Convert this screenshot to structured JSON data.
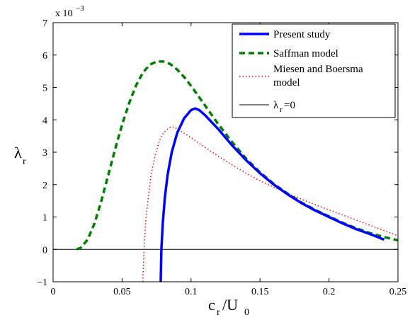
{
  "chart_data": {
    "type": "line",
    "xlabel": "c_r/U_0",
    "ylabel": "λ_r",
    "y_multiplier_label": "x 10^-3",
    "xlim": [
      0,
      0.25
    ],
    "ylim": [
      -1,
      7
    ],
    "x_ticks": [
      "0",
      "0.05",
      "0.1",
      "0.15",
      "0.2",
      "0.25"
    ],
    "y_ticks": [
      "−1",
      "0",
      "1",
      "2",
      "3",
      "4",
      "5",
      "6",
      "7"
    ],
    "grid": false,
    "legend_position": "top-right",
    "series": [
      {
        "name": "Present study",
        "color": "#0000ff",
        "style": "solid",
        "points": [
          [
            0.078,
            -1.0
          ],
          [
            0.0785,
            0.0
          ],
          [
            0.0795,
            0.8
          ],
          [
            0.081,
            1.6
          ],
          [
            0.083,
            2.3
          ],
          [
            0.086,
            3.0
          ],
          [
            0.09,
            3.6
          ],
          [
            0.095,
            4.05
          ],
          [
            0.1,
            4.3
          ],
          [
            0.103,
            4.35
          ],
          [
            0.106,
            4.3
          ],
          [
            0.11,
            4.15
          ],
          [
            0.12,
            3.7
          ],
          [
            0.13,
            3.2
          ],
          [
            0.14,
            2.75
          ],
          [
            0.15,
            2.35
          ],
          [
            0.16,
            2.0
          ],
          [
            0.17,
            1.7
          ],
          [
            0.18,
            1.43
          ],
          [
            0.19,
            1.2
          ],
          [
            0.2,
            1.0
          ],
          [
            0.21,
            0.8
          ],
          [
            0.22,
            0.62
          ],
          [
            0.23,
            0.47
          ],
          [
            0.24,
            0.3
          ]
        ]
      },
      {
        "name": "Saffman model",
        "color": "#008000",
        "style": "dashed",
        "points": [
          [
            0.017,
            0.0
          ],
          [
            0.02,
            0.05
          ],
          [
            0.025,
            0.3
          ],
          [
            0.03,
            0.8
          ],
          [
            0.035,
            1.5
          ],
          [
            0.04,
            2.3
          ],
          [
            0.045,
            3.1
          ],
          [
            0.05,
            3.85
          ],
          [
            0.055,
            4.5
          ],
          [
            0.06,
            5.05
          ],
          [
            0.065,
            5.45
          ],
          [
            0.07,
            5.7
          ],
          [
            0.075,
            5.8
          ],
          [
            0.08,
            5.8
          ],
          [
            0.085,
            5.72
          ],
          [
            0.09,
            5.55
          ],
          [
            0.095,
            5.32
          ],
          [
            0.1,
            5.05
          ],
          [
            0.11,
            4.45
          ],
          [
            0.12,
            3.85
          ],
          [
            0.13,
            3.3
          ],
          [
            0.14,
            2.8
          ],
          [
            0.15,
            2.38
          ],
          [
            0.16,
            2.02
          ],
          [
            0.17,
            1.72
          ],
          [
            0.18,
            1.45
          ],
          [
            0.19,
            1.22
          ],
          [
            0.2,
            1.02
          ],
          [
            0.21,
            0.82
          ],
          [
            0.22,
            0.65
          ],
          [
            0.23,
            0.5
          ],
          [
            0.24,
            0.38
          ],
          [
            0.25,
            0.28
          ]
        ]
      },
      {
        "name": "Miesen and Boersma model",
        "color": "#ff0000",
        "style": "dotted",
        "points": [
          [
            0.065,
            -1.0
          ],
          [
            0.066,
            0.0
          ],
          [
            0.067,
            0.8
          ],
          [
            0.069,
            1.6
          ],
          [
            0.071,
            2.3
          ],
          [
            0.074,
            2.9
          ],
          [
            0.077,
            3.35
          ],
          [
            0.08,
            3.6
          ],
          [
            0.084,
            3.75
          ],
          [
            0.087,
            3.78
          ],
          [
            0.09,
            3.72
          ],
          [
            0.1,
            3.45
          ],
          [
            0.11,
            3.15
          ],
          [
            0.12,
            2.87
          ],
          [
            0.13,
            2.6
          ],
          [
            0.14,
            2.35
          ],
          [
            0.15,
            2.12
          ],
          [
            0.16,
            1.92
          ],
          [
            0.17,
            1.73
          ],
          [
            0.18,
            1.55
          ],
          [
            0.19,
            1.38
          ],
          [
            0.2,
            1.22
          ],
          [
            0.21,
            1.06
          ],
          [
            0.22,
            0.9
          ],
          [
            0.23,
            0.74
          ],
          [
            0.24,
            0.58
          ],
          [
            0.25,
            0.42
          ]
        ]
      },
      {
        "name": "λ_r=0",
        "color": "#000000",
        "style": "solid-thin",
        "points": [
          [
            0,
            0
          ],
          [
            0.25,
            0
          ]
        ]
      }
    ]
  }
}
